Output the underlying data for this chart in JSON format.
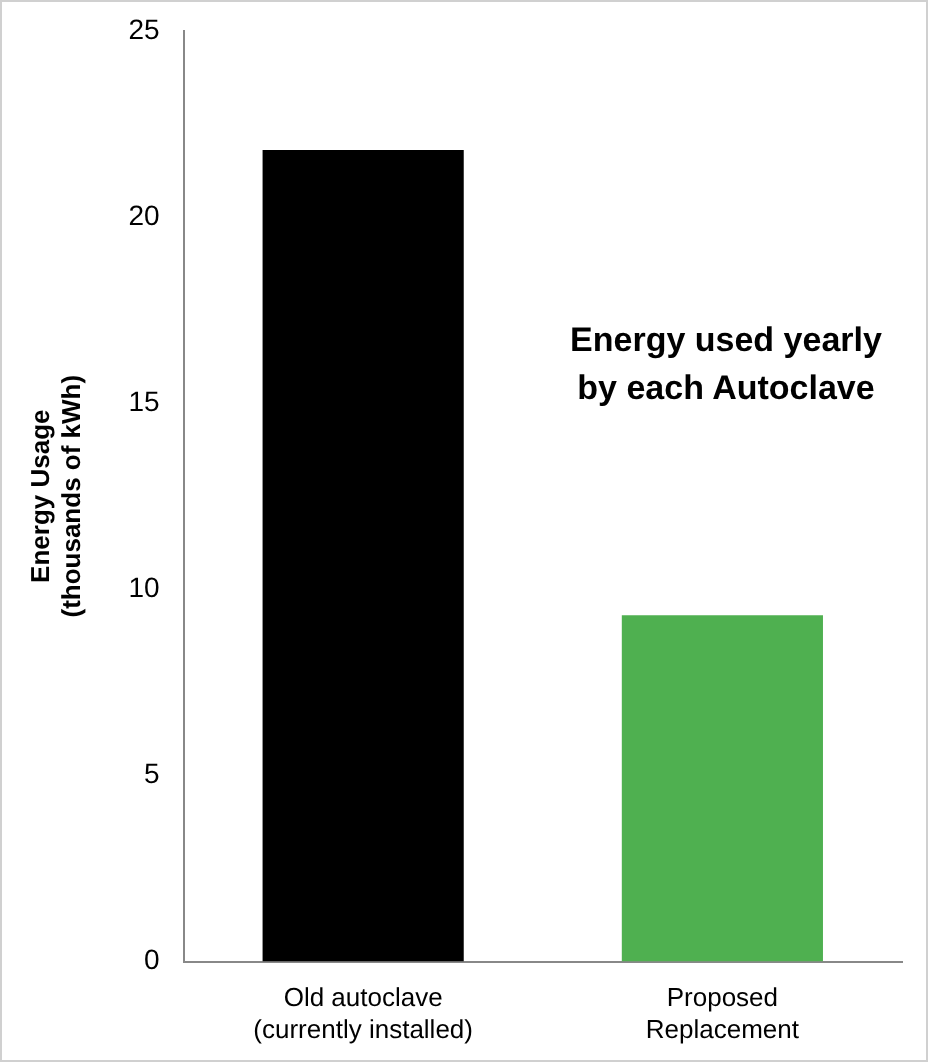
{
  "chart_data": {
    "type": "bar",
    "title": "Energy used yearly\nby each Autoclave",
    "ylabel": "Energy Usage\n(thousands of kWh)",
    "categories": [
      "Old autoclave\n(currently installed)",
      "Proposed\nReplacement"
    ],
    "values": [
      21.8,
      9.3
    ],
    "colors": [
      "#000000",
      "#4fb050"
    ],
    "ylim": [
      0,
      25
    ],
    "yticks": [
      0,
      5,
      10,
      15,
      20,
      25
    ],
    "grid": false,
    "legend": false
  }
}
